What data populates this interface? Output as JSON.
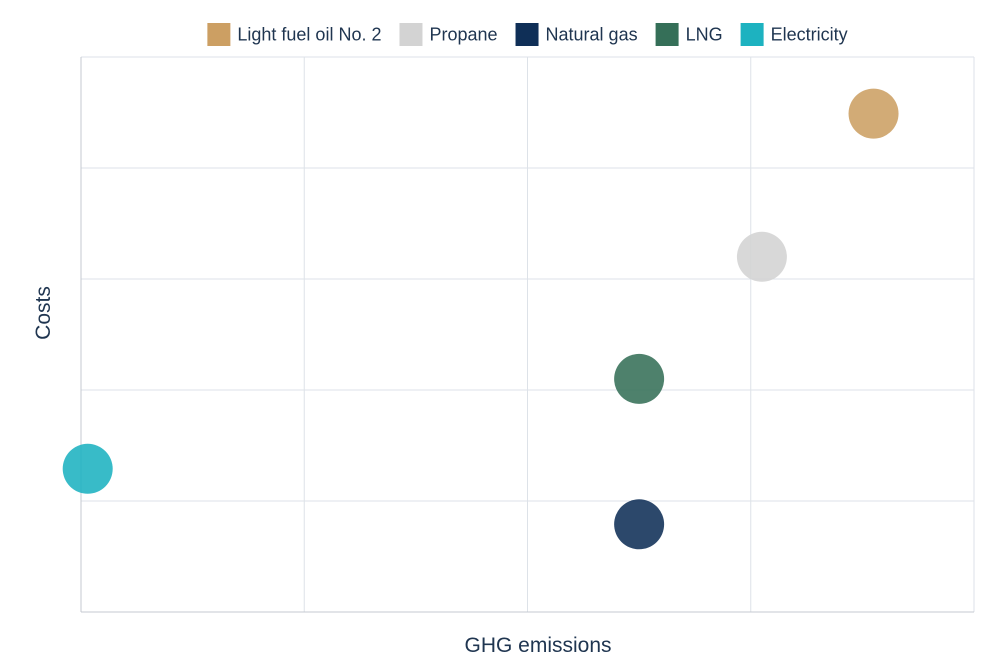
{
  "chart_data": {
    "type": "scatter",
    "title": "",
    "xlabel": "GHG emissions",
    "ylabel": "Costs",
    "xlim": [
      0,
      4
    ],
    "ylim": [
      0,
      5
    ],
    "grid": true,
    "legend_position": "top",
    "tick_labels_shown": false,
    "series": [
      {
        "name": "Light fuel oil No. 2",
        "color": "#cc9f63",
        "x": 3.55,
        "y": 4.49
      },
      {
        "name": "Propane",
        "color": "#d3d3d3",
        "x": 3.05,
        "y": 3.2
      },
      {
        "name": "Natural gas",
        "color": "#0f2f57",
        "x": 2.5,
        "y": 0.79
      },
      {
        "name": "LNG",
        "color": "#356f58",
        "x": 2.5,
        "y": 2.1
      },
      {
        "name": "Electricity",
        "color": "#1db2c0",
        "x": 0.03,
        "y": 1.29
      }
    ]
  }
}
